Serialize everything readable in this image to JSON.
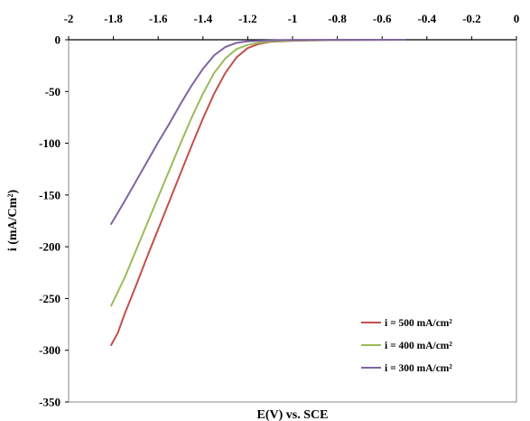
{
  "chart_data": {
    "type": "line",
    "title": "",
    "xlabel": "E(V)  vs. SCE",
    "ylabel": "i (mA/Cm²)",
    "xlim": [
      -2,
      0
    ],
    "ylim": [
      -350,
      0
    ],
    "x_ticks": [
      "-2",
      "-1.8",
      "-1.6",
      "-1.4",
      "-1.2",
      "-1",
      "-0.8",
      "-0.6",
      "-0.4",
      "-0.2",
      "0"
    ],
    "y_ticks": [
      "0",
      "-50",
      "-100",
      "-150",
      "-200",
      "-250",
      "-300",
      "-350"
    ],
    "x_axis_position": "top",
    "grid": false,
    "legend_position": "bottom-right",
    "series": [
      {
        "name": "i = 500 mA/cm²",
        "color": "#c0504d",
        "points": [
          [
            -1.81,
            -295
          ],
          [
            -1.78,
            -283
          ],
          [
            -1.75,
            -265
          ],
          [
            -1.7,
            -238
          ],
          [
            -1.65,
            -210
          ],
          [
            -1.6,
            -183
          ],
          [
            -1.55,
            -156
          ],
          [
            -1.5,
            -129
          ],
          [
            -1.45,
            -102
          ],
          [
            -1.4,
            -76
          ],
          [
            -1.35,
            -52
          ],
          [
            -1.3,
            -32
          ],
          [
            -1.25,
            -17
          ],
          [
            -1.2,
            -8
          ],
          [
            -1.15,
            -4
          ],
          [
            -1.1,
            -2
          ],
          [
            -1.0,
            -1
          ],
          [
            -0.8,
            -0.3
          ],
          [
            -0.6,
            -0.1
          ],
          [
            -0.5,
            0
          ]
        ]
      },
      {
        "name": "i = 400 mA/cm²",
        "color": "#9bbb59",
        "points": [
          [
            -1.81,
            -257
          ],
          [
            -1.75,
            -230
          ],
          [
            -1.7,
            -204
          ],
          [
            -1.65,
            -178
          ],
          [
            -1.6,
            -152
          ],
          [
            -1.55,
            -126
          ],
          [
            -1.5,
            -100
          ],
          [
            -1.45,
            -75
          ],
          [
            -1.4,
            -52
          ],
          [
            -1.35,
            -32
          ],
          [
            -1.3,
            -18
          ],
          [
            -1.25,
            -9
          ],
          [
            -1.2,
            -5
          ],
          [
            -1.15,
            -3
          ],
          [
            -1.1,
            -1.5
          ],
          [
            -1.0,
            -0.7
          ],
          [
            -0.8,
            -0.2
          ],
          [
            -0.5,
            0
          ]
        ]
      },
      {
        "name": "i = 300 mA/cm²",
        "color": "#8064a2",
        "points": [
          [
            -1.81,
            -178
          ],
          [
            -1.75,
            -156
          ],
          [
            -1.7,
            -137
          ],
          [
            -1.65,
            -118
          ],
          [
            -1.6,
            -99
          ],
          [
            -1.55,
            -81
          ],
          [
            -1.5,
            -62
          ],
          [
            -1.45,
            -44
          ],
          [
            -1.4,
            -28
          ],
          [
            -1.35,
            -15
          ],
          [
            -1.3,
            -7
          ],
          [
            -1.25,
            -3
          ],
          [
            -1.2,
            -1.5
          ],
          [
            -1.1,
            -0.6
          ],
          [
            -1.0,
            -0.3
          ],
          [
            -0.8,
            -0.1
          ],
          [
            -0.5,
            0
          ]
        ]
      }
    ]
  }
}
